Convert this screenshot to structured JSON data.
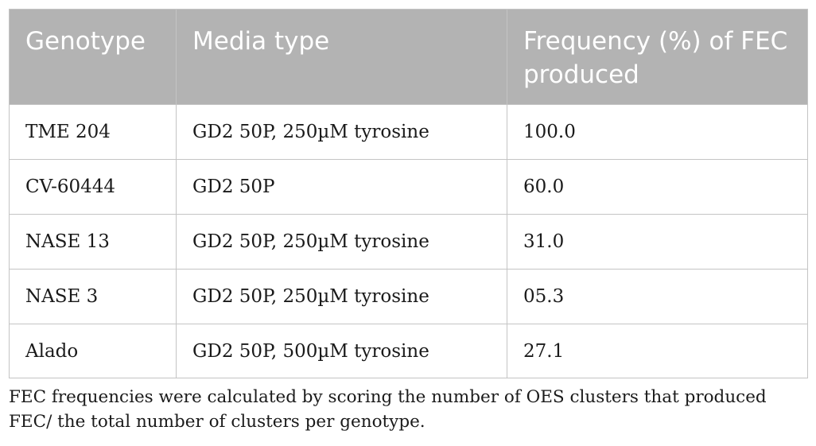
{
  "table": {
    "headers": [
      "Genotype",
      "Media type",
      "Frequency (%) of FEC produced"
    ],
    "rows": [
      [
        "TME 204",
        "GD2 50P, 250µM tyrosine",
        "100.0"
      ],
      [
        "CV-60444",
        "GD2 50P",
        "60.0"
      ],
      [
        "NASE 13",
        "GD2 50P, 250µM tyrosine",
        "31.0"
      ],
      [
        "NASE 3",
        "GD2 50P, 250µM tyrosine",
        "05.3"
      ],
      [
        "Alado",
        "GD2 50P, 500µM tyrosine",
        "27.1"
      ]
    ]
  },
  "footnote": "FEC frequencies were calculated by scoring the number of OES clusters that produced FEC/ the total number of clusters per genotype."
}
